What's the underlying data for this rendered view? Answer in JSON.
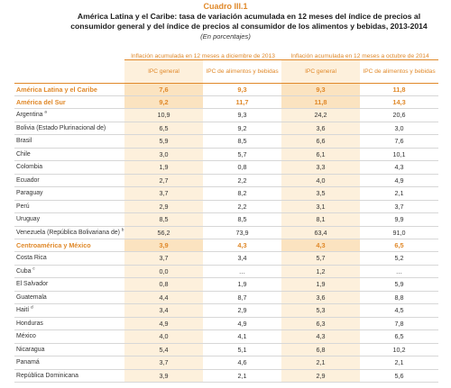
{
  "table_number": "Cuadro III.1",
  "title": "América Latina y el Caribe: tasa de variación acumulada en 12 meses del índice de precios al consumidor general y del índice de precios al consumidor de los alimentos y bebidas, 2013-2014",
  "subtitle": "(En porcentajes)",
  "groups": [
    "Inflación acumulada en 12 meses a diciembre de 2013",
    "Inflación acumulada en 12 meses a octubre de 2014"
  ],
  "columns": [
    "IPC general",
    "IPC de alimentos y bebidas",
    "IPC general",
    "IPC de alimentos y bebidas"
  ],
  "rows": [
    {
      "label": "América Latina y el Caribe",
      "note": "",
      "aggregate": true,
      "values": [
        "7,6",
        "9,3",
        "9,3",
        "11,8"
      ]
    },
    {
      "label": "América del Sur",
      "note": "",
      "aggregate": true,
      "values": [
        "9,2",
        "11,7",
        "11,8",
        "14,3"
      ]
    },
    {
      "label": "Argentina",
      "note": "a",
      "aggregate": false,
      "values": [
        "10,9",
        "9,3",
        "24,2",
        "20,6"
      ]
    },
    {
      "label": "Bolivia (Estado Plurinacional de)",
      "note": "",
      "aggregate": false,
      "values": [
        "6,5",
        "9,2",
        "3,6",
        "3,0"
      ]
    },
    {
      "label": "Brasil",
      "note": "",
      "aggregate": false,
      "values": [
        "5,9",
        "8,5",
        "6,6",
        "7,6"
      ]
    },
    {
      "label": "Chile",
      "note": "",
      "aggregate": false,
      "values": [
        "3,0",
        "5,7",
        "6,1",
        "10,1"
      ]
    },
    {
      "label": "Colombia",
      "note": "",
      "aggregate": false,
      "values": [
        "1,9",
        "0,8",
        "3,3",
        "4,3"
      ]
    },
    {
      "label": "Ecuador",
      "note": "",
      "aggregate": false,
      "values": [
        "2,7",
        "2,2",
        "4,0",
        "4,9"
      ]
    },
    {
      "label": "Paraguay",
      "note": "",
      "aggregate": false,
      "values": [
        "3,7",
        "8,2",
        "3,5",
        "2,1"
      ]
    },
    {
      "label": "Perú",
      "note": "",
      "aggregate": false,
      "values": [
        "2,9",
        "2,2",
        "3,1",
        "3,7"
      ]
    },
    {
      "label": "Uruguay",
      "note": "",
      "aggregate": false,
      "values": [
        "8,5",
        "8,5",
        "8,1",
        "9,9"
      ]
    },
    {
      "label": "Venezuela (República Bolivariana de)",
      "note": "b",
      "aggregate": false,
      "values": [
        "56,2",
        "73,9",
        "63,4",
        "91,0"
      ]
    },
    {
      "label": "Centroamérica y México",
      "note": "",
      "aggregate": true,
      "values": [
        "3,9",
        "4,3",
        "4,3",
        "6,5"
      ]
    },
    {
      "label": "Costa Rica",
      "note": "",
      "aggregate": false,
      "values": [
        "3,7",
        "3,4",
        "5,7",
        "5,2"
      ]
    },
    {
      "label": "Cuba",
      "note": "c",
      "aggregate": false,
      "values": [
        "0,0",
        "…",
        "1,2",
        "…"
      ]
    },
    {
      "label": "El Salvador",
      "note": "",
      "aggregate": false,
      "values": [
        "0,8",
        "1,9",
        "1,9",
        "5,9"
      ]
    },
    {
      "label": "Guatemala",
      "note": "",
      "aggregate": false,
      "values": [
        "4,4",
        "8,7",
        "3,6",
        "8,8"
      ]
    },
    {
      "label": "Haití",
      "note": "d",
      "aggregate": false,
      "values": [
        "3,4",
        "2,9",
        "5,3",
        "4,5"
      ]
    },
    {
      "label": "Honduras",
      "note": "",
      "aggregate": false,
      "values": [
        "4,9",
        "4,9",
        "6,3",
        "7,8"
      ]
    },
    {
      "label": "México",
      "note": "",
      "aggregate": false,
      "values": [
        "4,0",
        "4,1",
        "4,3",
        "6,5"
      ]
    },
    {
      "label": "Nicaragua",
      "note": "",
      "aggregate": false,
      "values": [
        "5,4",
        "5,1",
        "6,8",
        "10,2"
      ]
    },
    {
      "label": "Panamá",
      "note": "",
      "aggregate": false,
      "values": [
        "3,7",
        "4,6",
        "2,1",
        "2,1"
      ]
    },
    {
      "label": "República Dominicana",
      "note": "",
      "aggregate": false,
      "values": [
        "3,9",
        "2,1",
        "2,9",
        "5,6"
      ]
    }
  ]
}
